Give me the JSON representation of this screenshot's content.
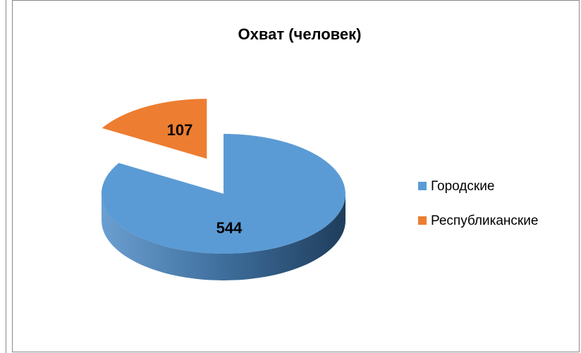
{
  "chart_data": {
    "type": "pie",
    "title": "Охват (человек)",
    "categories": [
      "Городские",
      "Республиканские"
    ],
    "values": [
      544,
      107
    ],
    "colors": [
      "#5b9bd5",
      "#ed7d31"
    ],
    "legend": "right"
  }
}
